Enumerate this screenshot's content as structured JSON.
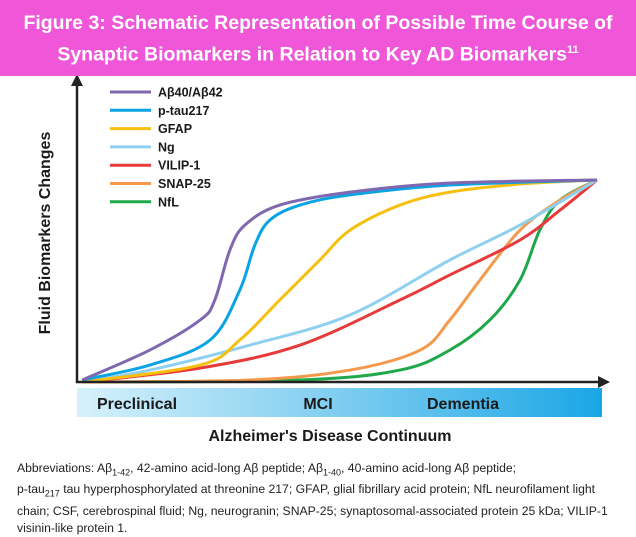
{
  "title": {
    "line1": "Figure 3: Schematic Representation of Possible Time Course of",
    "line2": "Synaptic Biomarkers in Relation to Key AD Biomarkers",
    "ref": "11"
  },
  "chart_data": {
    "type": "line",
    "title": "Figure 3: Schematic Representation of Possible Time Course of Synaptic Biomarkers in Relation to Key AD Biomarkers",
    "xlabel": "Alzheimer's Disease Continuum",
    "ylabel": "Fluid Biomarkers Changes",
    "xlim": [
      0,
      100
    ],
    "ylim": [
      0,
      100
    ],
    "stages": [
      "Preclinical",
      "MCI",
      "Dementia"
    ],
    "legend_position": "top-left",
    "series": [
      {
        "name": "Aβ40/Aβ42",
        "color": "#8068b0",
        "x": [
          1,
          14,
          23.7,
          26.5,
          29.4,
          32.3,
          39,
          52.5,
          71.7,
          100
        ],
        "y": [
          1,
          15.8,
          30.7,
          40.6,
          65.3,
          77.7,
          87.6,
          94,
          98.5,
          100
        ]
      },
      {
        "name": "p-tau217",
        "color": "#0aa3e3",
        "x": [
          1,
          14,
          25.6,
          31.3,
          34.2,
          37.1,
          42.9,
          52.5,
          71.7,
          100
        ],
        "y": [
          1,
          8.4,
          20.8,
          45.5,
          67.8,
          80.2,
          87.6,
          92.6,
          97.5,
          100
        ]
      },
      {
        "name": "GFAP",
        "color": "#f7bf10",
        "x": [
          1,
          23.7,
          31.3,
          39,
          46.7,
          52.5,
          62.1,
          71.7,
          85.2,
          100
        ],
        "y": [
          0,
          8.4,
          20.8,
          40.6,
          60.4,
          75.2,
          87.6,
          94,
          98,
          100
        ]
      },
      {
        "name": "Ng",
        "color": "#8fd0f0",
        "x": [
          1,
          14,
          33.3,
          52.5,
          71.7,
          85.2,
          100
        ],
        "y": [
          0,
          5.9,
          18.3,
          33.2,
          60.4,
          77.7,
          100
        ]
      },
      {
        "name": "VILIP-1",
        "color": "#e83a3a",
        "x": [
          1,
          23.7,
          42.9,
          62.1,
          71.7,
          85.2,
          92.9,
          100
        ],
        "y": [
          0,
          6.9,
          18.3,
          40.6,
          53,
          70.3,
          85.1,
          100
        ]
      },
      {
        "name": "SNAP-25",
        "color": "#f59a4c",
        "x": [
          1,
          33.3,
          52.5,
          66,
          71.7,
          77.5,
          85.2,
          92.9,
          100
        ],
        "y": [
          0,
          1,
          5.9,
          15.8,
          30.7,
          50.5,
          75.2,
          90.1,
          100
        ]
      },
      {
        "name": "NfL",
        "color": "#1fa84a",
        "x": [
          1,
          42.9,
          62.1,
          71.7,
          79.4,
          85.2,
          89,
          92.9,
          100
        ],
        "y": [
          0,
          1,
          5.9,
          15.8,
          30.7,
          50.5,
          75.2,
          90.1,
          100
        ]
      }
    ]
  },
  "abbreviations": {
    "p1": "Abbreviations: Aβ",
    "s1": "1-42",
    "p2": ", 42-amino acid-long Aβ peptide; Aβ",
    "s2": "1-40",
    "p3": ", 40-amino acid-long Aβ peptide;",
    "p4": "p-tau",
    "s4": "217",
    "p5": " tau hyperphosphorylated at threonine 217; GFAP, glial fibrillary acid protein; NfL neurofilament light chain; CSF, cerebrospinal fluid; Ng, neurogranin; SNAP-25; synaptosomal-associated protein 25 kDa; VILIP-1 visinin-like protein 1."
  }
}
